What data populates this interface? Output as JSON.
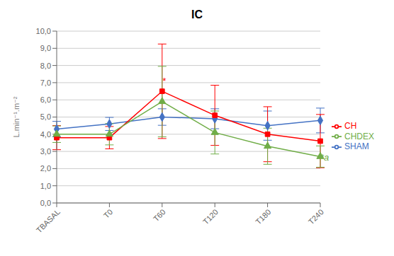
{
  "chart_data": {
    "type": "line",
    "title": "IC",
    "ylabel": "L.min⁻¹.m⁻²",
    "categories": [
      "TBASAL",
      "T0",
      "T60",
      "T120",
      "T180",
      "T240"
    ],
    "series": [
      {
        "name": "SHAM",
        "color": "#4472C4",
        "marker": "diamond",
        "values": [
          4.3,
          4.6,
          5.0,
          4.9,
          4.5,
          4.8
        ],
        "errors": [
          0.45,
          0.38,
          0.48,
          0.58,
          0.85,
          0.72
        ]
      },
      {
        "name": "CH",
        "color": "#FF0000",
        "marker": "square",
        "values": [
          3.8,
          3.8,
          6.5,
          5.1,
          4.0,
          3.6
        ],
        "errors": [
          0.7,
          0.65,
          2.75,
          1.75,
          1.6,
          1.55
        ]
      },
      {
        "name": "CHDEX",
        "color": "#70AD47",
        "marker": "triangle",
        "values": [
          4.0,
          4.0,
          5.9,
          4.1,
          3.3,
          2.7
        ],
        "errors": [
          0.48,
          0.62,
          2.05,
          1.25,
          1.05,
          0.62
        ]
      }
    ],
    "ylim": [
      0.0,
      10.0
    ],
    "yticks": [
      {
        "value": 0.0,
        "label": "0,0"
      },
      {
        "value": 1.0,
        "label": "1,0"
      },
      {
        "value": 2.0,
        "label": "2,0"
      },
      {
        "value": 3.0,
        "label": "3,0"
      },
      {
        "value": 4.0,
        "label": "4,0"
      },
      {
        "value": 5.0,
        "label": "5,0"
      },
      {
        "value": 6.0,
        "label": "6,0"
      },
      {
        "value": 7.0,
        "label": "7,0"
      },
      {
        "value": 8.0,
        "label": "8,0"
      },
      {
        "value": 9.0,
        "label": "9,0"
      },
      {
        "value": 10.0,
        "label": "10,0"
      }
    ],
    "annotations": [
      {
        "text": "*",
        "x": "T60",
        "y": 6.9,
        "color": "#FF0000"
      },
      {
        "text": "*a",
        "x": "T240",
        "y": 2.45,
        "color": "#70AD47"
      }
    ],
    "grid": true,
    "legend": "right"
  }
}
